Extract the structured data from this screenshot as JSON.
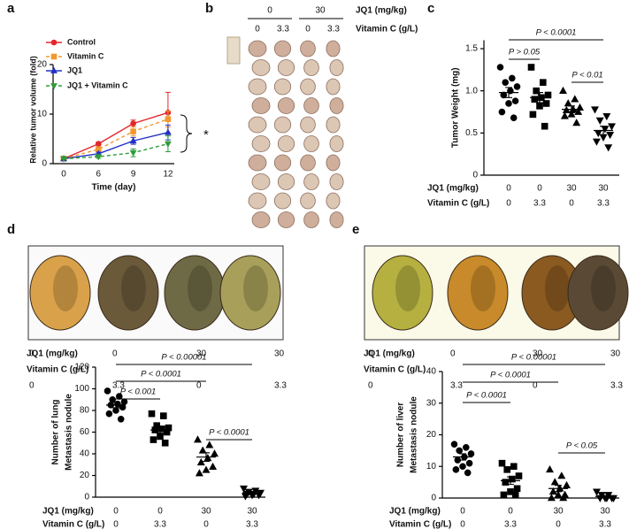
{
  "panel_labels": [
    "a",
    "b",
    "c",
    "d",
    "e"
  ],
  "photos": [
    {
      "factors": [
        {
          "label": "JQ1 (mg/kg)",
          "values": [
            "0",
            "30"
          ]
        },
        {
          "label": "Vitamin C (g/L)",
          "values": [
            "0",
            "3.3",
            "0",
            "3.3"
          ]
        }
      ]
    },
    {
      "factors": [
        {
          "label": "JQ1 (mg/kg)",
          "values": [
            "0",
            "0",
            "30",
            "30"
          ]
        },
        {
          "label": "Vitamin C (g/L)",
          "values": [
            "0",
            "3.3",
            "0",
            "3.3"
          ]
        }
      ]
    },
    {
      "factors": [
        {
          "label": "JQ1 (mg/kg)",
          "values": [
            "0",
            "0",
            "30",
            "30"
          ]
        },
        {
          "label": "Vitamin C (g/L)",
          "values": [
            "0",
            "3.3",
            "0",
            "3.3"
          ]
        }
      ]
    }
  ],
  "chart_data": [
    {
      "type": "line",
      "categories": [
        "0",
        "6",
        "9",
        "12"
      ],
      "xlabel": "Time (day)",
      "ylabel": "Relative tumor volume (fold)",
      "ylim": [
        0,
        20
      ],
      "yticks": [
        0,
        10,
        20
      ],
      "annotation": "*",
      "series": [
        {
          "name": "Control",
          "color": "#e3262b",
          "marker": "circle",
          "style": "solid",
          "values": [
            1,
            4,
            8.1,
            10.3
          ],
          "errors": [
            0.1,
            0.3,
            0.7,
            4.1
          ]
        },
        {
          "name": "Vitamin C",
          "color": "#f2982e",
          "marker": "square",
          "style": "dashed",
          "values": [
            1,
            2.9,
            6.5,
            9
          ],
          "errors": [
            0.1,
            0.3,
            0.9,
            1.6
          ]
        },
        {
          "name": "JQ1",
          "color": "#2330c4",
          "marker": "triangle",
          "style": "solid",
          "values": [
            1,
            2,
            4.6,
            6.3
          ],
          "errors": [
            0.1,
            0.3,
            0.7,
            1.5
          ]
        },
        {
          "name": "JQ1 + Vitamin C",
          "color": "#2e9c3a",
          "marker": "triangle-down",
          "style": "dashed",
          "values": [
            1,
            1.4,
            2.2,
            4
          ],
          "errors": [
            0.1,
            0.3,
            0.8,
            1.6
          ]
        }
      ]
    },
    {
      "type": "dot",
      "ylabel": "Tumor Weight (mg)",
      "ylim": [
        0,
        1.6
      ],
      "yticks": [
        0,
        0.5,
        {
          "value": 1,
          "label": "1.0"
        },
        1.5
      ],
      "factors": [
        {
          "label": "JQ1 (mg/kg)",
          "values": [
            "0",
            "0",
            "30",
            "30"
          ]
        },
        {
          "label": "Vitamin C (g/L)",
          "values": [
            "0",
            "3.3",
            "0",
            "3.3"
          ]
        }
      ],
      "brackets": [
        "P < 0.0001",
        "P > 0.05",
        "P < 0.01"
      ],
      "groups": [
        {
          "marker": "circle",
          "points": [
            1.28,
            1.15,
            1.1,
            1.05,
            1.0,
            0.95,
            0.88,
            0.85,
            0.75,
            0.68
          ],
          "mean": 0.98,
          "sem": 0.06
        },
        {
          "marker": "square",
          "points": [
            1.28,
            1.1,
            1.0,
            0.95,
            0.92,
            0.9,
            0.85,
            0.82,
            0.72,
            0.58
          ],
          "mean": 0.92,
          "sem": 0.06
        },
        {
          "marker": "triangle",
          "points": [
            1.0,
            0.9,
            0.85,
            0.8,
            0.78,
            0.77,
            0.75,
            0.72,
            0.7,
            0.62
          ],
          "mean": 0.78,
          "sem": 0.04
        },
        {
          "marker": "triangle-down",
          "points": [
            0.78,
            0.7,
            0.65,
            0.58,
            0.55,
            0.5,
            0.48,
            0.45,
            0.4,
            0.33
          ],
          "mean": 0.53,
          "sem": 0.05
        }
      ]
    },
    {
      "type": "dot",
      "ylabel": [
        "Number of lung",
        "Metastasis nodule"
      ],
      "ylim": [
        0,
        120
      ],
      "yticks": [
        0,
        20,
        40,
        60,
        80,
        100,
        120
      ],
      "factors": [
        {
          "label": "JQ1 (mg/kg)",
          "values": [
            "0",
            "0",
            "30",
            "30"
          ]
        },
        {
          "label": "Vitamin C (g/L)",
          "values": [
            "0",
            "3.3",
            "0",
            "3.3"
          ]
        }
      ],
      "brackets": [
        "P < 0.00001",
        "P < 0.0001",
        "P < 0.001",
        "P < 0.0001"
      ],
      "groups": [
        {
          "marker": "circle",
          "points": [
            98,
            93,
            90,
            88,
            86,
            85,
            83,
            80,
            77,
            72
          ],
          "mean": 85,
          "sem": 2.5
        },
        {
          "marker": "square",
          "points": [
            77,
            75,
            66,
            64,
            63,
            62,
            60,
            56,
            53,
            50
          ],
          "mean": 62,
          "sem": 3
        },
        {
          "marker": "triangle",
          "points": [
            53,
            48,
            43,
            40,
            36,
            32,
            28,
            25,
            22
          ],
          "mean": 37,
          "sem": 4
        },
        {
          "marker": "triangle-down",
          "points": [
            8,
            6,
            5,
            4,
            3,
            3,
            2,
            2,
            1
          ],
          "mean": 4,
          "sem": 1
        }
      ]
    },
    {
      "type": "dot",
      "ylabel": [
        "Number of liver",
        "Metastasis nodule"
      ],
      "ylim": [
        0,
        40
      ],
      "yticks": [
        0,
        10,
        20,
        30,
        40
      ],
      "factors": [
        {
          "label": "JQ1 (mg/kg)",
          "values": [
            "0",
            "0",
            "30",
            "30"
          ]
        },
        {
          "label": "Vitamin C (g/L)",
          "values": [
            "0",
            "3.3",
            "0",
            "3.3"
          ]
        }
      ],
      "brackets": [
        "P < 0.00001",
        "P < 0.0001",
        "P < 0.0001",
        "P < 0.05"
      ],
      "groups": [
        {
          "marker": "circle",
          "points": [
            17,
            16,
            15,
            14,
            13,
            12,
            11,
            10,
            9,
            8
          ],
          "mean": 13,
          "sem": 1
        },
        {
          "marker": "square",
          "points": [
            11,
            10,
            9,
            7,
            6,
            5,
            3,
            2,
            1,
            1
          ],
          "mean": 5.5,
          "sem": 1.2
        },
        {
          "marker": "triangle",
          "points": [
            9,
            7,
            5,
            4,
            3,
            2,
            1,
            1,
            0,
            0
          ],
          "mean": 3,
          "sem": 1
        },
        {
          "marker": "triangle-down",
          "points": [
            2,
            1,
            1,
            0,
            0,
            0,
            0,
            0
          ],
          "mean": 0.5,
          "sem": 0.3
        }
      ]
    }
  ]
}
